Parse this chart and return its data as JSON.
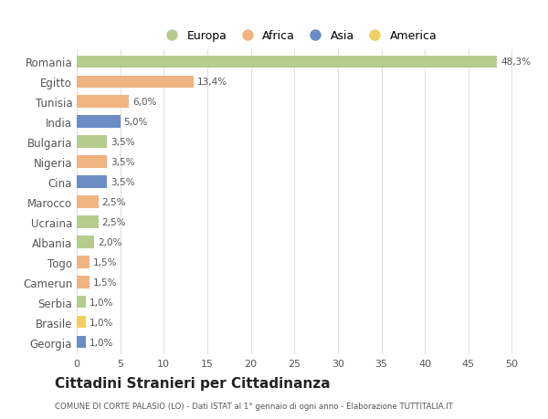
{
  "countries": [
    "Romania",
    "Egitto",
    "Tunisia",
    "India",
    "Bulgaria",
    "Nigeria",
    "Cina",
    "Marocco",
    "Ucraina",
    "Albania",
    "Togo",
    "Camerun",
    "Serbia",
    "Brasile",
    "Georgia"
  ],
  "values": [
    48.3,
    13.4,
    6.0,
    5.0,
    3.5,
    3.5,
    3.5,
    2.5,
    2.5,
    2.0,
    1.5,
    1.5,
    1.0,
    1.0,
    1.0
  ],
  "labels": [
    "48,3%",
    "13,4%",
    "6,0%",
    "5,0%",
    "3,5%",
    "3,5%",
    "3,5%",
    "2,5%",
    "2,5%",
    "2,0%",
    "1,5%",
    "1,5%",
    "1,0%",
    "1,0%",
    "1,0%"
  ],
  "continents": [
    "Europa",
    "Africa",
    "Africa",
    "Asia",
    "Europa",
    "Africa",
    "Asia",
    "Africa",
    "Europa",
    "Europa",
    "Africa",
    "Africa",
    "Europa",
    "America",
    "Asia"
  ],
  "colors": {
    "Europa": "#b5cc8e",
    "Africa": "#f0b482",
    "Asia": "#6b8dc4",
    "America": "#f0d060"
  },
  "title": "Cittadini Stranieri per Cittadinanza",
  "subtitle": "COMUNE DI CORTE PALASIO (LO) - Dati ISTAT al 1° gennaio di ogni anno - Elaborazione TUTTITALIA.IT",
  "xlim": [
    0,
    51
  ],
  "xticks": [
    0,
    5,
    10,
    15,
    20,
    25,
    30,
    35,
    40,
    45,
    50
  ],
  "background_color": "#ffffff",
  "grid_color": "#e0e0e0"
}
